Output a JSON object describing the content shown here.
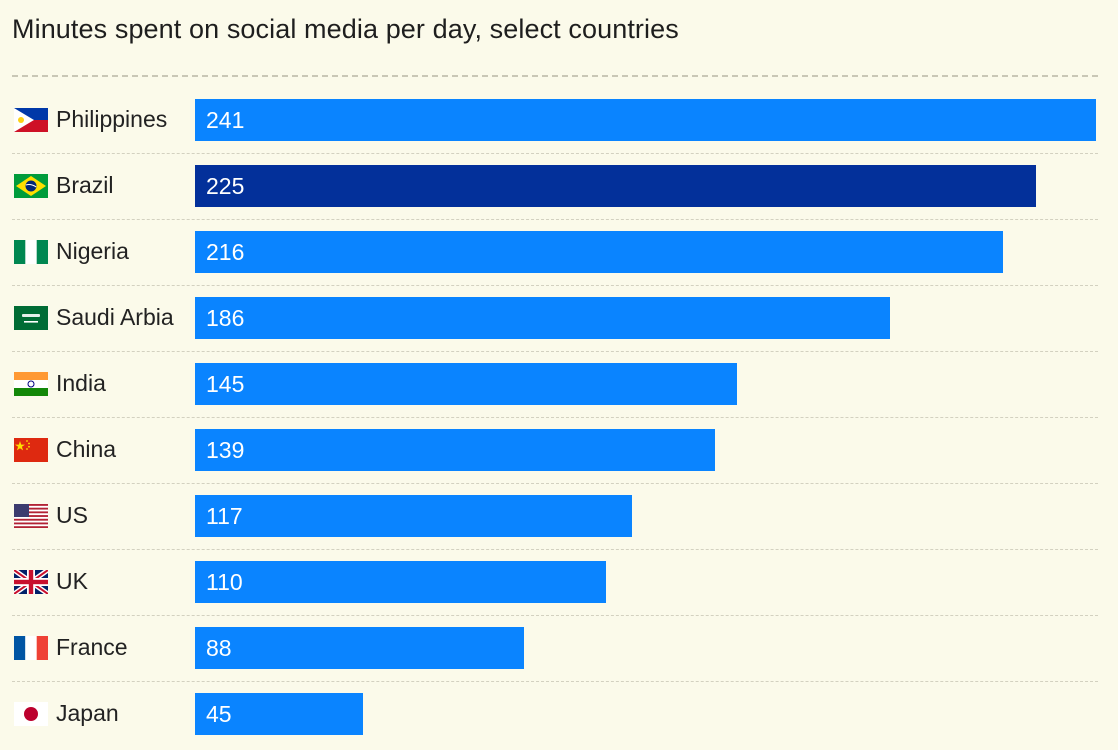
{
  "chart_data": {
    "type": "bar",
    "orientation": "horizontal",
    "title": "Minutes spent on social media per day, select countries",
    "categories": [
      "Philippines",
      "Brazil",
      "Nigeria",
      "Saudi Arbia",
      "India",
      "China",
      "US",
      "UK",
      "France",
      "Japan"
    ],
    "values": [
      241,
      225,
      216,
      186,
      145,
      139,
      117,
      110,
      88,
      45
    ],
    "highlight": "Brazil",
    "xlim": [
      0,
      241
    ],
    "grid": false,
    "colors": {
      "bar": "#0a84ff",
      "highlight": "#03309a",
      "background": "#fbfaea",
      "value_label": "#ffffff"
    },
    "flag_icons": [
      "philippines-flag-icon",
      "brazil-flag-icon",
      "nigeria-flag-icon",
      "saudi-arabia-flag-icon",
      "india-flag-icon",
      "china-flag-icon",
      "us-flag-icon",
      "uk-flag-icon",
      "france-flag-icon",
      "japan-flag-icon"
    ]
  }
}
